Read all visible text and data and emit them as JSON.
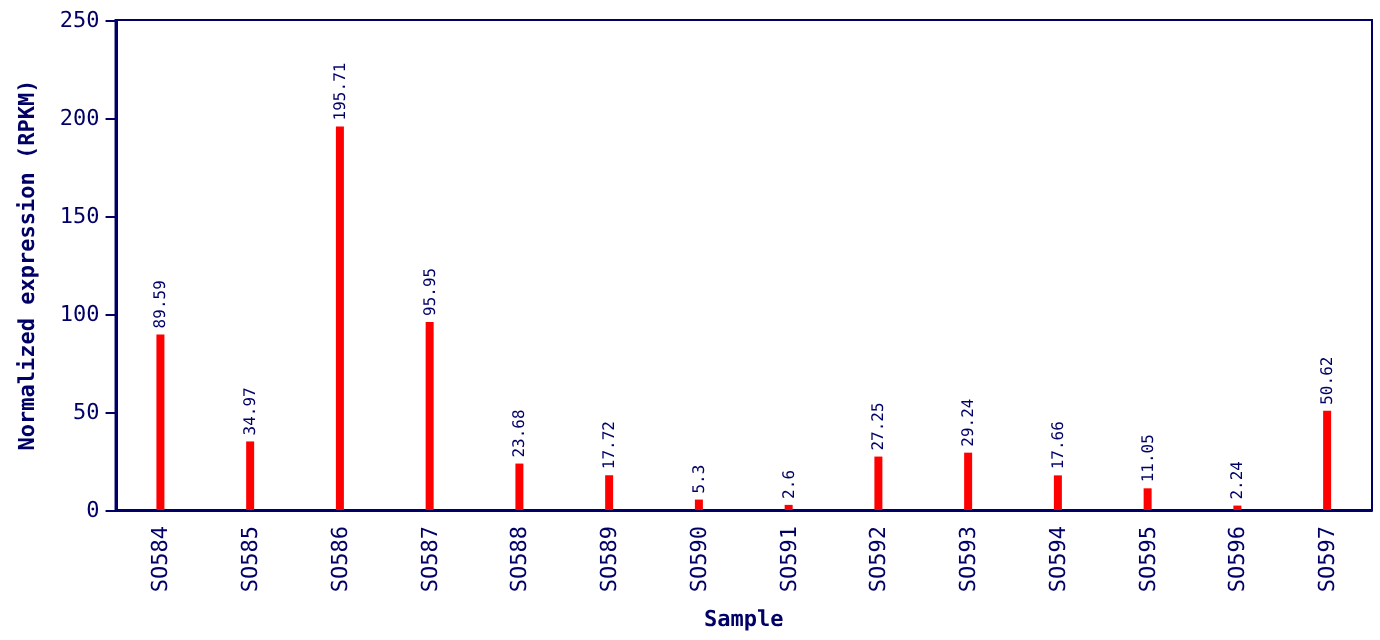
{
  "chart_data": {
    "type": "bar",
    "xlabel": "Sample",
    "ylabel": "Normalized expression (RPKM)",
    "categories": [
      "SO584",
      "SO585",
      "SO586",
      "SO587",
      "SO588",
      "SO589",
      "SO590",
      "SO591",
      "SO592",
      "SO593",
      "SO594",
      "SO595",
      "SO596",
      "SO597"
    ],
    "values": [
      89.59,
      34.97,
      195.71,
      95.95,
      23.68,
      17.72,
      5.3,
      2.6,
      27.25,
      29.24,
      17.66,
      11.05,
      2.24,
      50.62
    ],
    "color": "#ff0000",
    "ylim": [
      0,
      250
    ],
    "yticks": [
      0,
      50,
      100,
      150,
      200,
      250
    ],
    "grid": false,
    "data_labels": true
  }
}
